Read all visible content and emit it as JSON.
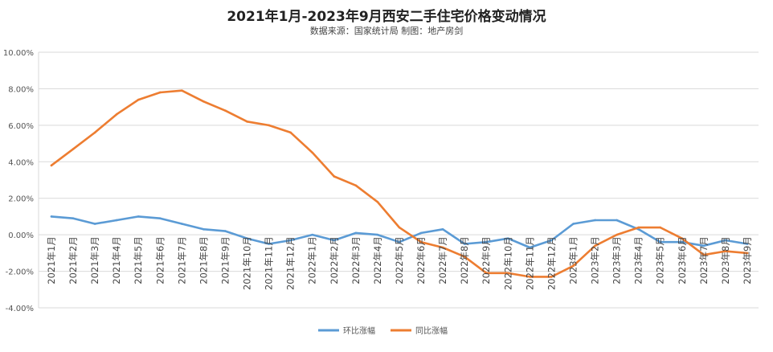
{
  "chart_data": {
    "type": "line",
    "title": "2021年1月-2023年9月西安二手住宅价格变动情况",
    "subtitle": "数据来源：国家统计局   制图：地产房剑",
    "categories": [
      "2021年1月",
      "2021年2月",
      "2021年3月",
      "2021年4月",
      "2021年5月",
      "2021年6月",
      "2021年7月",
      "2021年8月",
      "2021年9月",
      "2021年10月",
      "2021年11月",
      "2021年12月",
      "2022年1月",
      "2022年2月",
      "2022年3月",
      "2022年4月",
      "2022年5月",
      "2022年6月",
      "2022年7月",
      "2022年8月",
      "2022年9月",
      "2022年10月",
      "2022年11月",
      "2022年12月",
      "2023年1月",
      "2023年2月",
      "2023年3月",
      "2023年4月",
      "2023年5月",
      "2023年6月",
      "2023年7月",
      "2023年8月",
      "2023年9月"
    ],
    "y_ticks": [
      "10.00%",
      "8.00%",
      "6.00%",
      "4.00%",
      "2.00%",
      "0.00%",
      "-2.00%",
      "-4.00%"
    ],
    "ylim": [
      -4,
      10
    ],
    "grid": true,
    "legend_position": "bottom",
    "series": [
      {
        "name": "环比涨幅",
        "color": "#5b9bd5",
        "values": [
          1.0,
          0.9,
          0.6,
          0.8,
          1.0,
          0.9,
          0.6,
          0.3,
          0.2,
          -0.2,
          -0.5,
          -0.3,
          0.0,
          -0.3,
          0.1,
          0.0,
          -0.4,
          0.1,
          0.3,
          -0.5,
          -0.4,
          -0.2,
          -0.7,
          -0.3,
          0.6,
          0.8,
          0.8,
          0.3,
          -0.4,
          -0.4,
          -0.6,
          -0.3,
          -0.5
        ]
      },
      {
        "name": "同比涨幅",
        "color": "#ed7d31",
        "values": [
          3.8,
          4.7,
          5.6,
          6.6,
          7.4,
          7.8,
          7.9,
          7.3,
          6.8,
          6.2,
          6.0,
          5.6,
          4.5,
          3.2,
          2.7,
          1.8,
          0.4,
          -0.4,
          -0.7,
          -1.2,
          -2.1,
          -2.1,
          -2.3,
          -2.3,
          -1.7,
          -0.6,
          0.0,
          0.4,
          0.4,
          -0.2,
          -1.1,
          -0.9,
          -1.0
        ]
      }
    ]
  }
}
